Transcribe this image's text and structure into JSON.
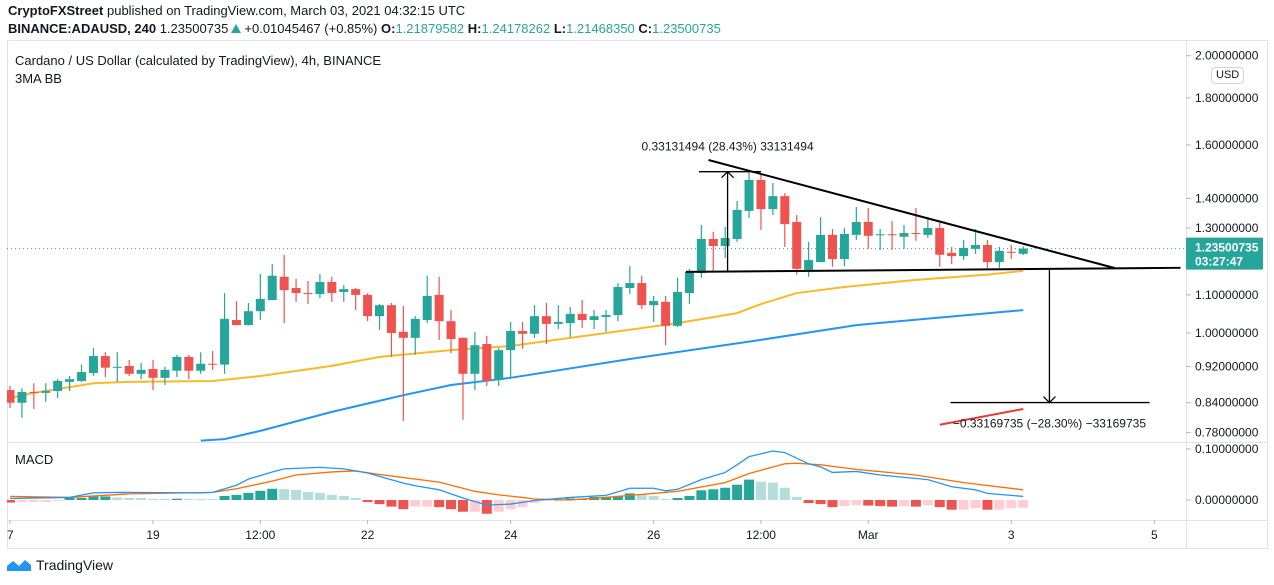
{
  "header": {
    "publisher": "CryptoFXStreet",
    "published_text": "published on TradingView.com, March 03, 2021 04:32:15 UTC",
    "symbol": "BINANCE:ADAUSD, 240",
    "last": "1.23500735",
    "change": "+0.01045467 (+0.85%)",
    "ohlc": [
      {
        "label": "O:",
        "value": "1.21879582"
      },
      {
        "label": "H:",
        "value": "1.24178262"
      },
      {
        "label": "L:",
        "value": "1.21468350"
      },
      {
        "label": "C:",
        "value": "1.23500735"
      }
    ]
  },
  "footer": {
    "brand": "TradingView"
  },
  "colors": {
    "up": "#26a69a",
    "down": "#ef5350",
    "up_light": "#b2dfdb",
    "down_light": "#ffcdd2",
    "ma_yellow": "#f9b928",
    "ma_blue": "#2196f3",
    "ma_red": "#e53935",
    "macd": "#2196f3",
    "signal": "#ff6d00"
  },
  "chart_data": {
    "type": "candlestick",
    "title": "Cardano / US Dollar (calculated by TradingView), 4h, BINANCE",
    "indicator_label": "3MA BB",
    "currency": "USD",
    "scale": "log",
    "current_price": {
      "value": 1.23500735,
      "label": "1.23500735",
      "countdown": "03:27:47"
    },
    "price_ticks": [
      {
        "value": 2.0,
        "label": "2.00000000"
      },
      {
        "value": 1.8,
        "label": "1.80000000"
      },
      {
        "value": 1.6,
        "label": "1.60000000"
      },
      {
        "value": 1.4,
        "label": "1.40000000"
      },
      {
        "value": 1.3,
        "label": "1.30000000"
      },
      {
        "value": 1.1,
        "label": "1.10000000"
      },
      {
        "value": 1.0,
        "label": "1.00000000"
      },
      {
        "value": 0.92,
        "label": "0.92000000"
      },
      {
        "value": 0.84,
        "label": "0.84000000"
      },
      {
        "value": 0.78,
        "label": "0.78000000"
      }
    ],
    "time_labels": [
      {
        "label": "7",
        "index": 0
      },
      {
        "label": "19",
        "index": 12
      },
      {
        "label": "12:00",
        "index": 21
      },
      {
        "label": "22",
        "index": 30
      },
      {
        "label": "24",
        "index": 42
      },
      {
        "label": "26",
        "index": 54
      },
      {
        "label": "12:00",
        "index": 63
      },
      {
        "label": "Mar",
        "index": 72
      },
      {
        "label": "3",
        "index": 84
      },
      {
        "label": "5",
        "index": 96
      }
    ],
    "candles_ohlc": [
      [
        0.867,
        0.876,
        0.829,
        0.84
      ],
      [
        0.84,
        0.871,
        0.809,
        0.863
      ],
      [
        0.863,
        0.882,
        0.827,
        0.861
      ],
      [
        0.861,
        0.882,
        0.842,
        0.865
      ],
      [
        0.865,
        0.891,
        0.85,
        0.887
      ],
      [
        0.885,
        0.898,
        0.865,
        0.891
      ],
      [
        0.887,
        0.924,
        0.885,
        0.907
      ],
      [
        0.905,
        0.963,
        0.898,
        0.944
      ],
      [
        0.944,
        0.953,
        0.896,
        0.917
      ],
      [
        0.917,
        0.953,
        0.885,
        0.919
      ],
      [
        0.921,
        0.935,
        0.898,
        0.903
      ],
      [
        0.903,
        0.928,
        0.891,
        0.912
      ],
      [
        0.914,
        0.935,
        0.867,
        0.894
      ],
      [
        0.894,
        0.919,
        0.878,
        0.912
      ],
      [
        0.91,
        0.947,
        0.896,
        0.942
      ],
      [
        0.942,
        0.947,
        0.891,
        0.91
      ],
      [
        0.91,
        0.953,
        0.903,
        0.926
      ],
      [
        0.926,
        0.956,
        0.912,
        0.924
      ],
      [
        0.924,
        1.105,
        0.903,
        1.036
      ],
      [
        1.033,
        1.083,
        1.019,
        1.02
      ],
      [
        1.02,
        1.078,
        1.019,
        1.056
      ],
      [
        1.056,
        1.159,
        1.033,
        1.089
      ],
      [
        1.086,
        1.188,
        1.085,
        1.154
      ],
      [
        1.151,
        1.216,
        1.025,
        1.113
      ],
      [
        1.119,
        1.145,
        1.081,
        1.105
      ],
      [
        1.105,
        1.139,
        1.075,
        1.104
      ],
      [
        1.102,
        1.159,
        1.091,
        1.136
      ],
      [
        1.136,
        1.151,
        1.081,
        1.105
      ],
      [
        1.108,
        1.127,
        1.081,
        1.116
      ],
      [
        1.116,
        1.119,
        1.059,
        1.1
      ],
      [
        1.1,
        1.105,
        1.03,
        1.043
      ],
      [
        1.043,
        1.075,
        1.008,
        1.072
      ],
      [
        1.072,
        1.078,
        0.942,
        1.0
      ],
      [
        1.003,
        1.07,
        0.803,
        0.988
      ],
      [
        0.988,
        1.043,
        0.947,
        1.036
      ],
      [
        1.033,
        1.154,
        1.025,
        1.097
      ],
      [
        1.1,
        1.151,
        0.983,
        1.03
      ],
      [
        1.03,
        1.059,
        0.951,
        0.985
      ],
      [
        0.988,
        0.989,
        0.805,
        0.903
      ],
      [
        0.903,
        1.003,
        0.867,
        0.97
      ],
      [
        0.973,
        0.993,
        0.876,
        0.887
      ],
      [
        0.889,
        0.963,
        0.876,
        0.958
      ],
      [
        0.958,
        1.028,
        0.894,
        1.005
      ],
      [
        1.005,
        1.028,
        0.961,
        0.998
      ],
      [
        0.998,
        1.072,
        0.988,
        1.043
      ],
      [
        1.043,
        1.078,
        0.973,
        1.023
      ],
      [
        1.023,
        1.072,
        1.01,
        1.028
      ],
      [
        1.025,
        1.067,
        0.99,
        1.049
      ],
      [
        1.049,
        1.086,
        1.013,
        1.033
      ],
      [
        1.033,
        1.059,
        1.01,
        1.043
      ],
      [
        1.041,
        1.059,
        1.003,
        1.046
      ],
      [
        1.046,
        1.133,
        1.03,
        1.122
      ],
      [
        1.119,
        1.182,
        1.102,
        1.133
      ],
      [
        1.133,
        1.154,
        1.062,
        1.072
      ],
      [
        1.072,
        1.097,
        1.028,
        1.083
      ],
      [
        1.081,
        1.097,
        0.97,
        1.018
      ],
      [
        1.018,
        1.148,
        1.015,
        1.108
      ],
      [
        1.105,
        1.174,
        1.075,
        1.165
      ],
      [
        1.162,
        1.31,
        1.148,
        1.265
      ],
      [
        1.265,
        1.288,
        1.168,
        1.243
      ],
      [
        1.243,
        1.304,
        1.206,
        1.268
      ],
      [
        1.265,
        1.391,
        1.256,
        1.36
      ],
      [
        1.357,
        1.499,
        1.333,
        1.466
      ],
      [
        1.466,
        1.485,
        1.294,
        1.363
      ],
      [
        1.363,
        1.455,
        1.343,
        1.408
      ],
      [
        1.408,
        1.419,
        1.24,
        1.313
      ],
      [
        1.32,
        1.343,
        1.157,
        1.174
      ],
      [
        1.171,
        1.256,
        1.151,
        1.2
      ],
      [
        1.194,
        1.336,
        1.194,
        1.278
      ],
      [
        1.278,
        1.297,
        1.18,
        1.203
      ],
      [
        1.203,
        1.3,
        1.182,
        1.281
      ],
      [
        1.278,
        1.37,
        1.262,
        1.32
      ],
      [
        1.32,
        1.367,
        1.234,
        1.275
      ],
      [
        1.278,
        1.297,
        1.231,
        1.28
      ],
      [
        1.28,
        1.323,
        1.231,
        1.278
      ],
      [
        1.272,
        1.31,
        1.234,
        1.284
      ],
      [
        1.284,
        1.367,
        1.259,
        1.283
      ],
      [
        1.278,
        1.33,
        1.268,
        1.3
      ],
      [
        1.3,
        1.317,
        1.18,
        1.216
      ],
      [
        1.222,
        1.24,
        1.188,
        1.212
      ],
      [
        1.212,
        1.262,
        1.2,
        1.237
      ],
      [
        1.234,
        1.297,
        1.219,
        1.246
      ],
      [
        1.246,
        1.262,
        1.177,
        1.194
      ],
      [
        1.194,
        1.24,
        1.177,
        1.228
      ],
      [
        1.225,
        1.246,
        1.203,
        1.222
      ],
      [
        1.219,
        1.242,
        1.215,
        1.235
      ]
    ],
    "moving_averages": [
      {
        "color": "#f9b928",
        "points": [
          [
            0,
            0.85
          ],
          [
            2,
            0.861
          ],
          [
            7,
            0.882
          ],
          [
            10,
            0.885
          ],
          [
            17,
            0.887
          ],
          [
            21,
            0.898
          ],
          [
            27,
            0.921
          ],
          [
            31,
            0.942
          ],
          [
            37,
            0.958
          ],
          [
            42,
            0.968
          ],
          [
            50,
            1.0
          ],
          [
            56,
            1.025
          ],
          [
            61,
            1.051
          ],
          [
            63,
            1.075
          ],
          [
            66,
            1.105
          ],
          [
            70,
            1.122
          ],
          [
            76,
            1.142
          ],
          [
            82,
            1.157
          ],
          [
            85,
            1.168
          ]
        ]
      },
      {
        "color": "#2196f3",
        "points": [
          [
            16,
            0.764
          ],
          [
            18,
            0.767
          ],
          [
            21,
            0.783
          ],
          [
            27,
            0.821
          ],
          [
            33,
            0.856
          ],
          [
            37,
            0.878
          ],
          [
            42,
            0.894
          ],
          [
            52,
            0.937
          ],
          [
            63,
            0.983
          ],
          [
            71,
            1.02
          ],
          [
            85,
            1.059
          ]
        ]
      },
      {
        "color": "#e53935",
        "points": [
          [
            78,
            0.795
          ],
          [
            85,
            0.827
          ]
        ]
      }
    ],
    "trendlines": [
      {
        "from": [
          58.6,
          1.541
        ],
        "to": [
          92.7,
          1.176
        ]
      },
      {
        "from": [
          56.7,
          1.165
        ],
        "to": [
          98.2,
          1.177
        ]
      }
    ],
    "measurements": [
      {
        "index": 60.2,
        "from": 1.1654,
        "to": 1.4967,
        "span": [
          57.8,
          63.0
        ],
        "label": "0.33131494 (28.43%) 33131494"
      },
      {
        "index": 87.2,
        "from": 1.1721,
        "to": 0.8404,
        "span": [
          78.9,
          95.6
        ],
        "label": "−0.33169735 (−28.30%) −33169735"
      }
    ],
    "macd": {
      "label": "MACD",
      "ticks": [
        {
          "value": 0.1,
          "label": "0.10000000"
        },
        {
          "value": 0.0,
          "label": "0.00000000"
        }
      ],
      "histogram": [
        -0.005,
        -0.004,
        -0.004,
        -0.004,
        -0.002,
        0.004,
        0.004,
        0.007,
        0.007,
        0.005,
        0.004,
        0.0038,
        0.002,
        0.0019,
        0.0025,
        0.002,
        0.0019,
        0.0018,
        0.008,
        0.01,
        0.014,
        0.018,
        0.022,
        0.0215,
        0.02,
        0.016,
        0.014,
        0.01,
        0.008,
        0.004,
        -0.004,
        -0.008,
        -0.013,
        -0.018,
        -0.013,
        -0.013,
        -0.014,
        -0.018,
        -0.023,
        -0.023,
        -0.027,
        -0.023,
        -0.018,
        -0.014,
        -0.006,
        -0.002,
        0.001,
        0.003,
        0.003,
        0.006,
        0.006,
        0.008,
        0.013,
        0.011,
        0.008,
        0.002,
        0.004,
        0.008,
        0.019,
        0.021,
        0.024,
        0.03,
        0.04,
        0.036,
        0.034,
        0.024,
        0.006,
        -0.006,
        -0.008,
        -0.014,
        -0.012,
        -0.01,
        -0.011,
        -0.012,
        -0.013,
        -0.012,
        -0.013,
        -0.01,
        -0.014,
        -0.019,
        -0.019,
        -0.016,
        -0.019,
        -0.019,
        -0.016,
        -0.015
      ],
      "macd_line": [
        [
          0,
          0.003
        ],
        [
          5,
          0.005
        ],
        [
          7,
          0.014
        ],
        [
          9,
          0.015
        ],
        [
          16,
          0.014
        ],
        [
          17,
          0.015
        ],
        [
          19,
          0.029
        ],
        [
          20,
          0.041
        ],
        [
          22,
          0.055
        ],
        [
          23,
          0.061
        ],
        [
          26,
          0.064
        ],
        [
          28,
          0.061
        ],
        [
          30,
          0.053
        ],
        [
          33,
          0.033
        ],
        [
          34,
          0.028
        ],
        [
          36,
          0.02
        ],
        [
          38,
          0.004
        ],
        [
          40,
          -0.01
        ],
        [
          42,
          -0.008
        ],
        [
          44,
          -0.001
        ],
        [
          47,
          0.005
        ],
        [
          50,
          0.009
        ],
        [
          52,
          0.023
        ],
        [
          54,
          0.023
        ],
        [
          55,
          0.018
        ],
        [
          56,
          0.021
        ],
        [
          58,
          0.04
        ],
        [
          60,
          0.054
        ],
        [
          61,
          0.069
        ],
        [
          62,
          0.085
        ],
        [
          64,
          0.096
        ],
        [
          65,
          0.093
        ],
        [
          67,
          0.071
        ],
        [
          68,
          0.065
        ],
        [
          69,
          0.054
        ],
        [
          71,
          0.056
        ],
        [
          73,
          0.049
        ],
        [
          77,
          0.04
        ],
        [
          79,
          0.026
        ],
        [
          81,
          0.02
        ],
        [
          82,
          0.013
        ],
        [
          85,
          0.007
        ]
      ],
      "signal_line": [
        [
          0,
          0.007
        ],
        [
          5,
          0.005
        ],
        [
          10,
          0.012
        ],
        [
          17,
          0.015
        ],
        [
          19,
          0.022
        ],
        [
          22,
          0.037
        ],
        [
          24,
          0.049
        ],
        [
          27,
          0.055
        ],
        [
          29,
          0.057
        ],
        [
          31,
          0.05
        ],
        [
          36,
          0.035
        ],
        [
          39,
          0.017
        ],
        [
          41,
          0.01
        ],
        [
          43,
          0.005
        ],
        [
          44,
          0.002
        ],
        [
          47,
          0.0
        ],
        [
          51,
          0.007
        ],
        [
          56,
          0.017
        ],
        [
          60,
          0.034
        ],
        [
          62,
          0.052
        ],
        [
          65,
          0.071
        ],
        [
          66,
          0.072
        ],
        [
          68,
          0.069
        ],
        [
          71,
          0.06
        ],
        [
          76,
          0.049
        ],
        [
          80,
          0.034
        ],
        [
          85,
          0.02
        ]
      ]
    }
  }
}
